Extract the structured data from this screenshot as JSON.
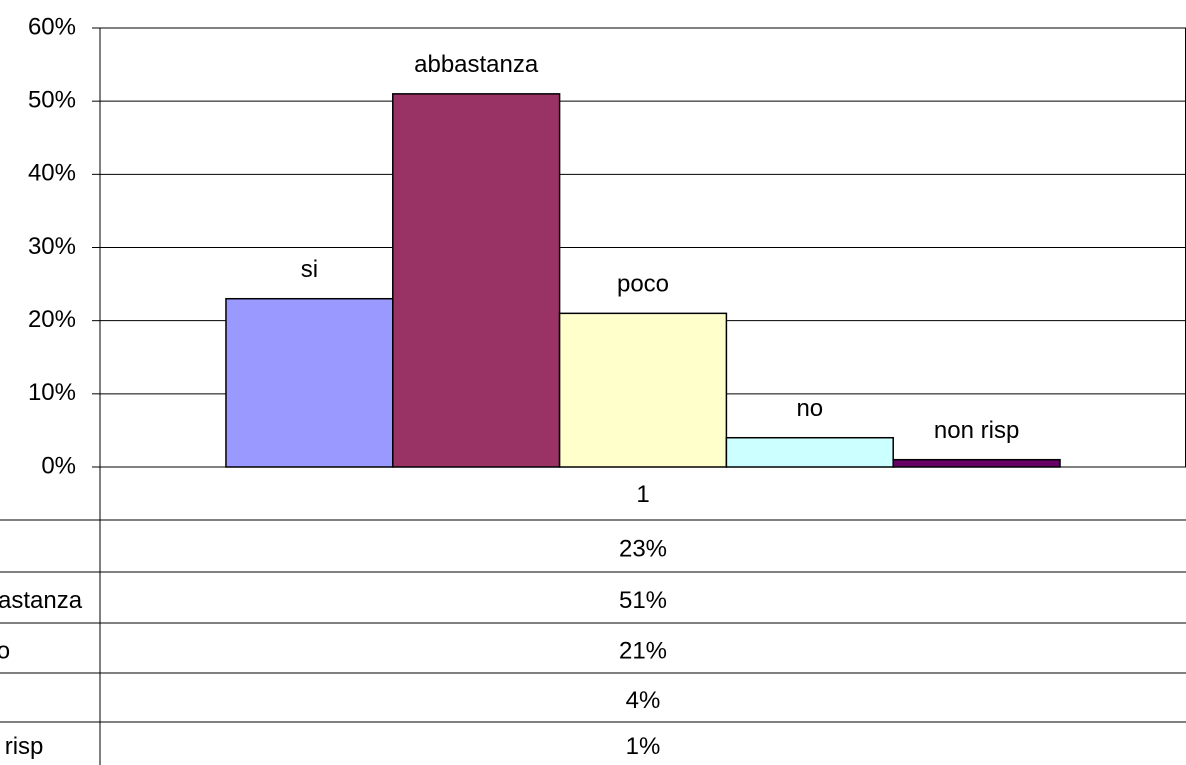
{
  "chart_data": {
    "type": "bar",
    "categories": [
      "1"
    ],
    "series": [
      {
        "name": "si",
        "color": "#9999ff",
        "values": [
          23
        ],
        "value_labels": [
          "23%"
        ]
      },
      {
        "name": "abbastanza",
        "color": "#993366",
        "values": [
          51
        ],
        "value_labels": [
          "51%"
        ]
      },
      {
        "name": "poco",
        "color": "#ffffcc",
        "values": [
          21
        ],
        "value_labels": [
          "21%"
        ]
      },
      {
        "name": "no",
        "color": "#ccffff",
        "values": [
          4
        ],
        "value_labels": [
          "4%"
        ]
      },
      {
        "name": "non risp",
        "color": "#660066",
        "values": [
          1
        ],
        "value_labels": [
          "1%"
        ]
      }
    ],
    "ylim": [
      0,
      60
    ],
    "yticks": [
      {
        "value": 0,
        "label": "0%"
      },
      {
        "value": 10,
        "label": "10%"
      },
      {
        "value": 20,
        "label": "20%"
      },
      {
        "value": 30,
        "label": "30%"
      },
      {
        "value": 40,
        "label": "40%"
      },
      {
        "value": 50,
        "label": "50%"
      },
      {
        "value": 60,
        "label": "60%"
      }
    ],
    "grid": true,
    "data_table": true
  }
}
